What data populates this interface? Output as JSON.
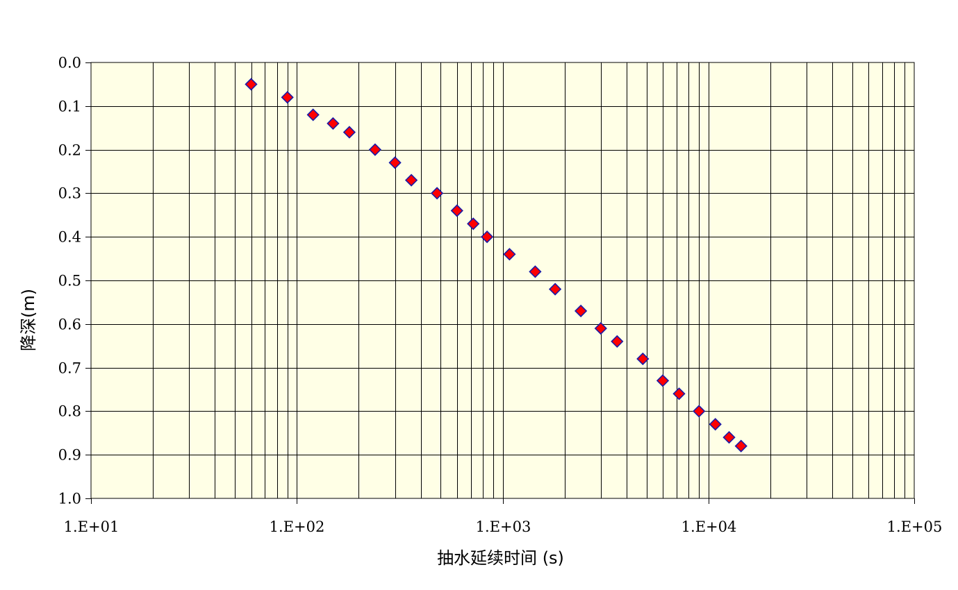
{
  "chart_data": {
    "type": "scatter",
    "title": "",
    "xlabel": "抽水延续时间 (s)",
    "ylabel": "降深(m)",
    "x_scale": "log",
    "xlim": [
      10,
      100000
    ],
    "ylim": [
      0,
      1.0
    ],
    "y_inverted": true,
    "grid": true,
    "legend": "none",
    "x_tick_labels": [
      "1.E+01",
      "1.E+02",
      "1.E+03",
      "1.E+04",
      "1.E+05"
    ],
    "y_tick_labels": [
      "0.0",
      "0.1",
      "0.2",
      "0.3",
      "0.4",
      "0.5",
      "0.6",
      "0.7",
      "0.8",
      "0.9",
      "1.0"
    ],
    "marker": "diamond",
    "colors": {
      "marker_fill": "#ff0000",
      "marker_stroke": "#1a1aa6",
      "plot_background": "#ffffe6",
      "grid": "#000000"
    },
    "series": [
      {
        "x": [
          60,
          90,
          120,
          150,
          180,
          240,
          300,
          360,
          480,
          600,
          720,
          840,
          1080,
          1440,
          1800,
          2400,
          3000,
          3600,
          4800,
          6000,
          7200,
          9000,
          10800,
          12600,
          14400
        ],
        "y": [
          0.05,
          0.08,
          0.12,
          0.14,
          0.16,
          0.2,
          0.23,
          0.27,
          0.3,
          0.34,
          0.37,
          0.4,
          0.44,
          0.48,
          0.52,
          0.57,
          0.61,
          0.64,
          0.68,
          0.73,
          0.76,
          0.8,
          0.83,
          0.86,
          0.88
        ]
      }
    ]
  }
}
